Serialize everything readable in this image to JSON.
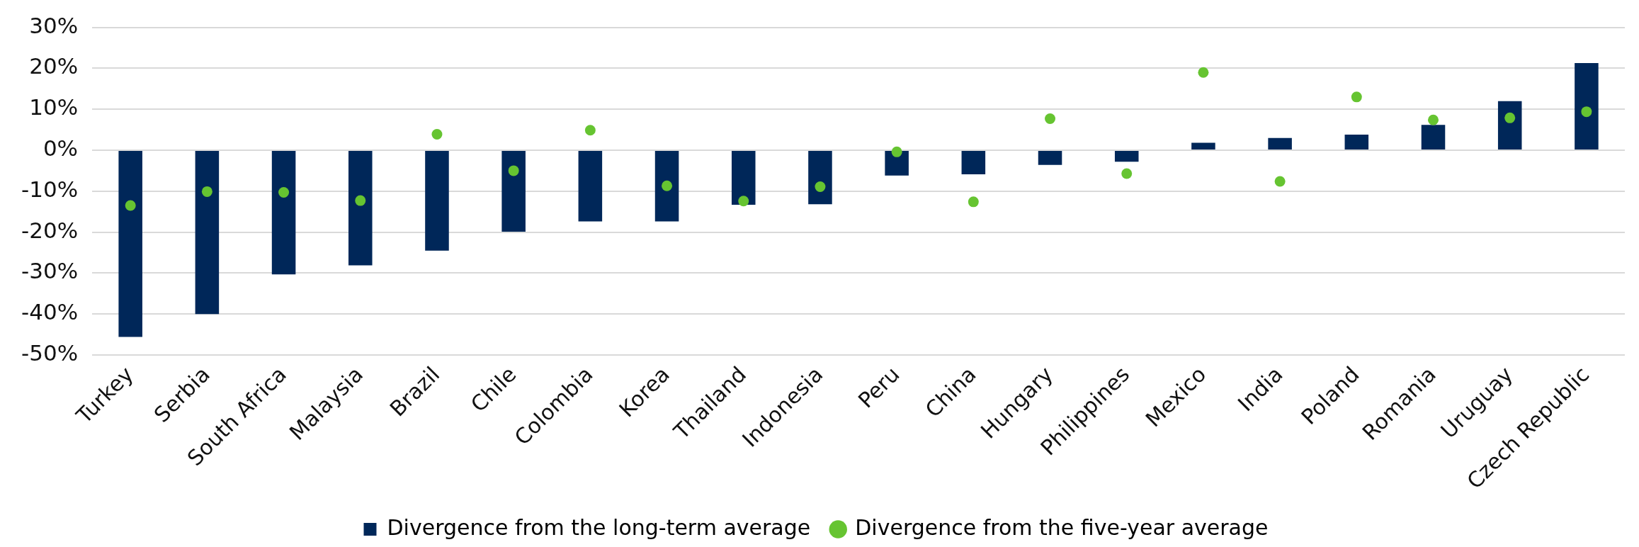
{
  "chart_data": {
    "type": "bar",
    "categories": [
      "Turkey",
      "Serbia",
      "South Africa",
      "Malaysia",
      "Brazil",
      "Chile",
      "Colombia",
      "Korea",
      "Thailand",
      "Indonesia",
      "Peru",
      "China",
      "Hungary",
      "Philippines",
      "Mexico",
      "India",
      "Poland",
      "Romania",
      "Uruguay",
      "Czech Republic"
    ],
    "series": [
      {
        "name": "Divergence from the long-term average",
        "color": "#002759",
        "values": [
          -45.6,
          -40,
          -30.3,
          -28.1,
          -24.5,
          -19.9,
          -17.4,
          -17.4,
          -13.3,
          -13.2,
          -6.2,
          -5.9,
          -3.6,
          -2.8,
          1.8,
          3,
          3.8,
          6.2,
          12,
          21.3
        ]
      },
      {
        "name": "Divergence from the five-year average",
        "type": "scatter",
        "color": "#66c431",
        "x": [
          "Turkey",
          "Serbia",
          "South Africa",
          "Malaysia",
          "Brazil",
          "Chile",
          "Colombia",
          "Korea",
          "Thailand",
          "Indonesia",
          "Peru",
          "China",
          "Hungary",
          "Philippines",
          "Mexico",
          "India",
          "Poland",
          "Romania",
          "Uruguay",
          "Czech Republic"
        ],
        "values": [
          -13.5,
          -10.1,
          -10.3,
          -12.3,
          3.9,
          -5,
          4.9,
          -8.7,
          -12.4,
          -8.9,
          -0.4,
          -12.6,
          7.7,
          -5.7,
          19,
          -7.6,
          13,
          7.4,
          7.9,
          9.4
        ]
      }
    ],
    "ylim": [
      -50,
      30
    ],
    "yticks": [
      {
        "value": -50,
        "label": "-50%"
      },
      {
        "value": -40,
        "label": "-40%"
      },
      {
        "value": -30,
        "label": "-30%"
      },
      {
        "value": -20,
        "label": "-20%"
      },
      {
        "value": -10,
        "label": "-10%"
      },
      {
        "value": 0,
        "label": "0%"
      },
      {
        "value": 10,
        "label": "10%"
      },
      {
        "value": 20,
        "label": "20%"
      },
      {
        "value": 30,
        "label": "30%"
      }
    ],
    "grid": "y",
    "legend": "bottom",
    "marker": "circle"
  }
}
